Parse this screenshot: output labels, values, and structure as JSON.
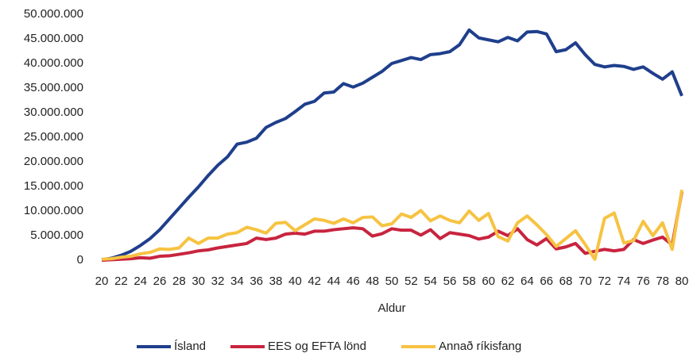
{
  "chart_data": {
    "type": "line",
    "x_label": "Aldur",
    "x": [
      20,
      21,
      22,
      23,
      24,
      25,
      26,
      27,
      28,
      29,
      30,
      31,
      32,
      33,
      34,
      35,
      36,
      37,
      38,
      39,
      40,
      41,
      42,
      43,
      44,
      45,
      46,
      47,
      48,
      49,
      50,
      51,
      52,
      53,
      54,
      55,
      56,
      57,
      58,
      59,
      60,
      61,
      62,
      63,
      64,
      65,
      66,
      67,
      68,
      69,
      70,
      71,
      72,
      73,
      74,
      75,
      76,
      77,
      78,
      79,
      80
    ],
    "xlim": [
      20,
      80
    ],
    "xticks": [
      20,
      22,
      24,
      26,
      28,
      30,
      32,
      34,
      36,
      38,
      40,
      42,
      44,
      46,
      48,
      50,
      52,
      54,
      56,
      58,
      60,
      62,
      64,
      66,
      68,
      70,
      72,
      74,
      76,
      78,
      80
    ],
    "ylim": [
      0,
      50000000
    ],
    "yticks": [
      0,
      {
        "value": 5000000,
        "label": "5.000.000"
      },
      {
        "value": 10000000,
        "label": "10.000.000"
      },
      {
        "value": 15000000,
        "label": "15.000.000"
      },
      {
        "value": 20000000,
        "label": "20.000.000"
      },
      {
        "value": 25000000,
        "label": "25.000.000"
      },
      {
        "value": 30000000,
        "label": "30.000.000"
      },
      {
        "value": 35000000,
        "label": "35.000.000"
      },
      {
        "value": 40000000,
        "label": "40.000.000"
      },
      {
        "value": 45000000,
        "label": "45.000.000"
      },
      {
        "value": 50000000,
        "label": "50.000.000"
      }
    ],
    "grid": false,
    "legend": "bottom",
    "series": [
      {
        "name": "Ísland",
        "color": "#1f3f8c",
        "values": [
          100000,
          400000,
          1000000,
          1800000,
          3000000,
          4400000,
          6200000,
          8400000,
          10600000,
          12800000,
          14900000,
          17200000,
          19300000,
          21000000,
          23600000,
          24000000,
          24800000,
          27000000,
          28000000,
          28800000,
          30200000,
          31700000,
          32300000,
          34000000,
          34200000,
          35900000,
          35200000,
          36000000,
          37200000,
          38400000,
          40000000,
          40600000,
          41200000,
          40800000,
          41800000,
          42000000,
          42400000,
          43800000,
          46800000,
          45200000,
          44800000,
          44400000,
          45300000,
          44600000,
          46400000,
          46500000,
          46000000,
          42400000,
          42800000,
          44200000,
          41800000,
          39800000,
          39300000,
          39600000,
          39400000,
          38800000,
          39300000,
          38000000,
          36800000,
          38300000,
          33400000
        ]
      },
      {
        "name": "EES og EFTA lönd",
        "color": "#c8243f",
        "values": [
          0,
          100000,
          200000,
          300000,
          500000,
          400000,
          800000,
          900000,
          1200000,
          1500000,
          1900000,
          2100000,
          2500000,
          2800000,
          3100000,
          3400000,
          4500000,
          4200000,
          4500000,
          5300000,
          5500000,
          5300000,
          5900000,
          5900000,
          6200000,
          6400000,
          6600000,
          6400000,
          4900000,
          5400000,
          6400000,
          6100000,
          6100000,
          5100000,
          6200000,
          4400000,
          5600000,
          5300000,
          5000000,
          4300000,
          4700000,
          5900000,
          5000000,
          6400000,
          4200000,
          3100000,
          4400000,
          2300000,
          2700000,
          3400000,
          1400000,
          1800000,
          2200000,
          1900000,
          2200000,
          4200000,
          3400000,
          4100000,
          4700000,
          3100000,
          13900000
        ]
      },
      {
        "name": "Annað ríkisfang",
        "color": "#f6c342",
        "values": [
          200000,
          300000,
          600000,
          800000,
          1300000,
          1600000,
          2300000,
          2200000,
          2500000,
          4500000,
          3400000,
          4500000,
          4500000,
          5300000,
          5600000,
          6700000,
          6200000,
          5500000,
          7500000,
          7700000,
          6000000,
          7200000,
          8400000,
          8100000,
          7500000,
          8400000,
          7600000,
          8700000,
          8800000,
          7000000,
          7400000,
          9400000,
          8700000,
          10100000,
          8000000,
          9000000,
          8100000,
          7600000,
          10000000,
          8100000,
          9500000,
          4800000,
          3900000,
          7600000,
          9000000,
          7200000,
          5200000,
          2800000,
          4400000,
          6000000,
          3200000,
          200000,
          8500000,
          9600000,
          3500000,
          4000000,
          7900000,
          5000000,
          7600000,
          2200000,
          14300000
        ]
      }
    ]
  }
}
